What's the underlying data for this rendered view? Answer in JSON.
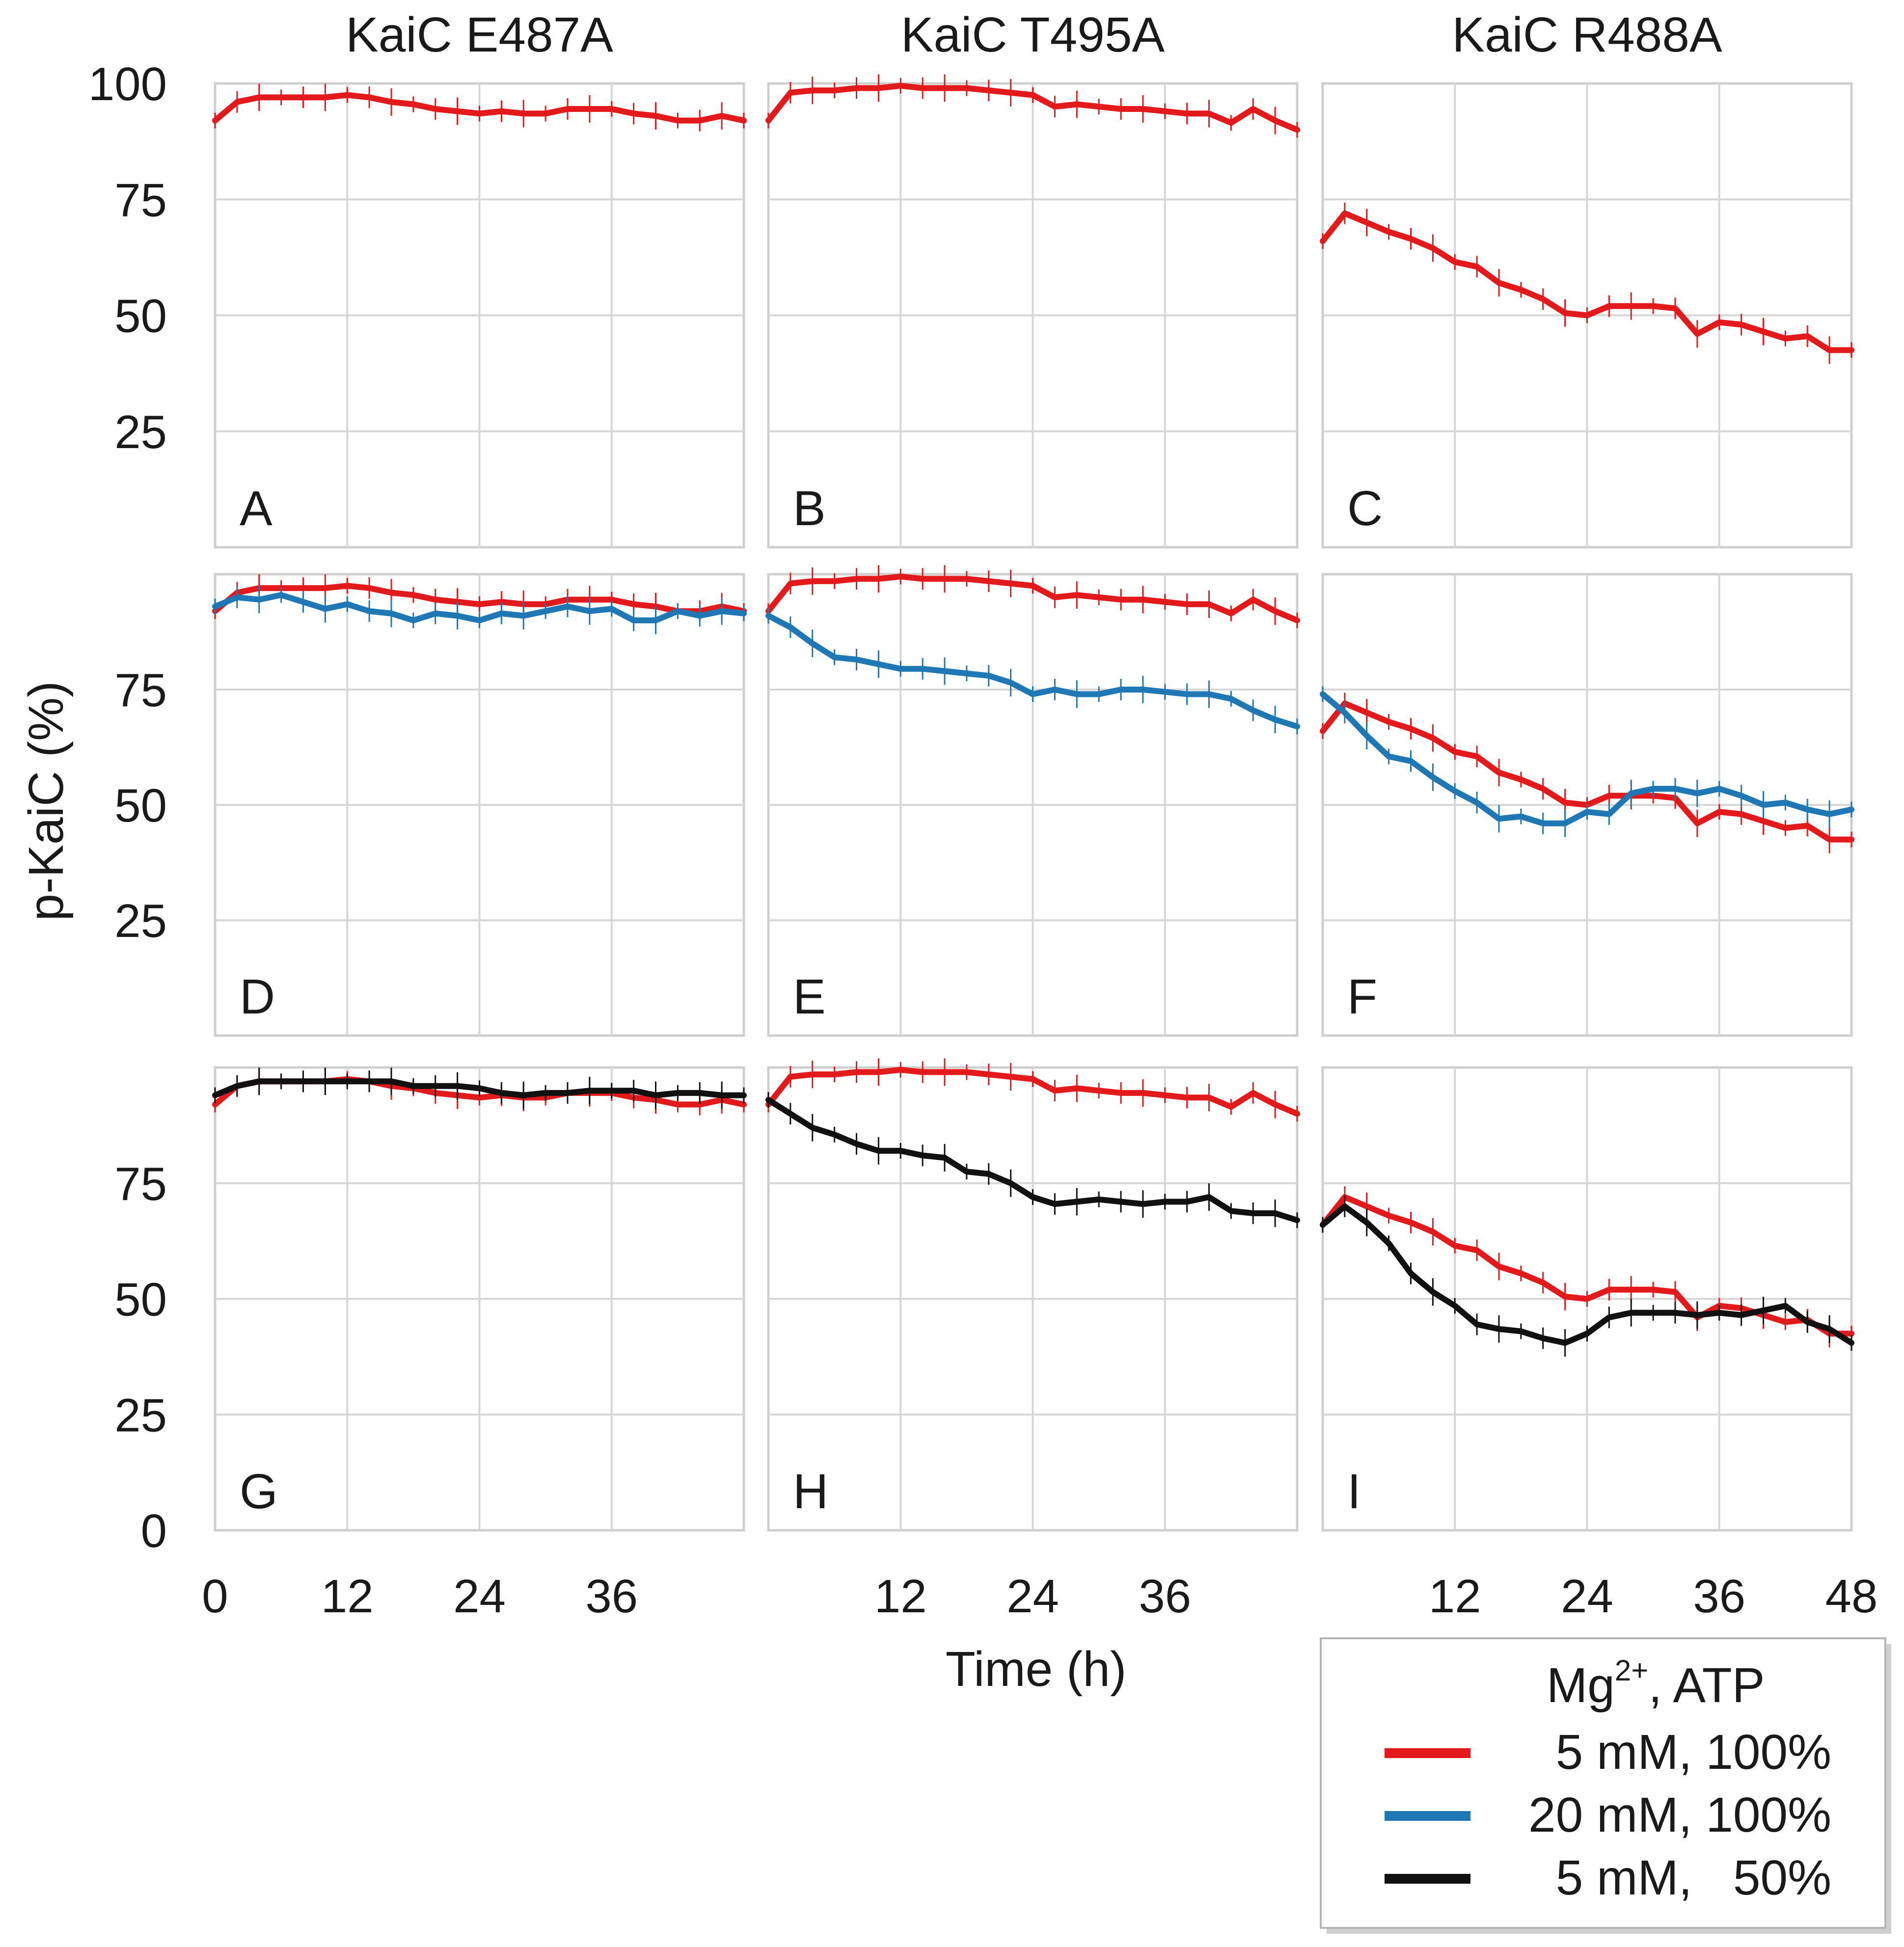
{
  "chart_data": {
    "type": "line",
    "layout": "3x3 small multiples",
    "column_titles": [
      "KaiC E487A",
      "KaiC T495A",
      "KaiC R488A"
    ],
    "ylabel": "p-KaiC (%)",
    "xlabel": "Time (h)",
    "xlim": [
      0,
      48
    ],
    "ylim": [
      0,
      100
    ],
    "x_grid": [
      0,
      12,
      24,
      36,
      48
    ],
    "y_grid": [
      0,
      25,
      50,
      75,
      100
    ],
    "y_tick_rows": [
      [
        "100",
        "75",
        "50",
        "25"
      ],
      [
        "75",
        "50",
        "25"
      ],
      [
        "75",
        "50",
        "25",
        "0"
      ]
    ],
    "x_tick_cols": [
      [
        "0",
        "12",
        "24",
        "36"
      ],
      [
        "12",
        "24",
        "36"
      ],
      [
        "12",
        "24",
        "36",
        "48"
      ]
    ],
    "colors": {
      "5 mM, 100%": "#e31a1c",
      "20 mM, 100%": "#1f78b4",
      "5 mM, 50%": "#111111",
      "frame": "#cfcfcf",
      "grid": "#d6d6d6"
    },
    "legend": {
      "title_mg": "Mg",
      "title_sup": "2+",
      "title_rest": ",  ATP",
      "entries": [
        "5 mM, 100%",
        "20 mM, 100%",
        "5 mM,   50%"
      ],
      "placement": "bottom-right"
    },
    "series_profiles": {
      "E487A_red": {
        "x": [
          0,
          2,
          4,
          6,
          8,
          10,
          12,
          14,
          16,
          18,
          20,
          22,
          24,
          26,
          28,
          30,
          32,
          34,
          36,
          38,
          40,
          42,
          44,
          46,
          48
        ],
        "y": [
          92,
          96,
          97,
          97,
          97,
          97,
          97.5,
          97,
          96,
          95.5,
          94.5,
          94,
          93.5,
          94,
          93.5,
          93.5,
          94.5,
          94.5,
          94.5,
          93.5,
          93,
          92,
          92,
          93,
          92
        ]
      },
      "E487A_blue": {
        "x": [
          0,
          2,
          4,
          6,
          8,
          10,
          12,
          14,
          16,
          18,
          20,
          22,
          24,
          26,
          28,
          30,
          32,
          34,
          36,
          38,
          40,
          42,
          44,
          46,
          48
        ],
        "y": [
          93,
          95,
          94.5,
          95.5,
          94,
          92.5,
          93.5,
          92,
          91.5,
          90,
          91.5,
          91,
          90,
          91.5,
          91,
          92,
          93,
          92,
          92.5,
          90,
          90,
          92,
          91,
          92,
          91.5
        ]
      },
      "E487A_black": {
        "x": [
          0,
          2,
          4,
          6,
          8,
          10,
          12,
          14,
          16,
          18,
          20,
          22,
          24,
          26,
          28,
          30,
          32,
          34,
          36,
          38,
          40,
          42,
          44,
          46,
          48
        ],
        "y": [
          94,
          96,
          97,
          97,
          97,
          97,
          97,
          97,
          97,
          96,
          96,
          96,
          95.5,
          94.5,
          94,
          94.5,
          94.5,
          95,
          95,
          95,
          94,
          94.5,
          94.5,
          94,
          94
        ]
      },
      "T495A_red": {
        "x": [
          0,
          2,
          4,
          6,
          8,
          10,
          12,
          14,
          16,
          18,
          20,
          22,
          24,
          26,
          28,
          30,
          32,
          34,
          36,
          38,
          40,
          42,
          44,
          46,
          48
        ],
        "y": [
          92,
          98,
          98.5,
          98.5,
          99,
          99,
          99.5,
          99,
          99,
          99,
          98.5,
          98,
          97.5,
          95,
          95.5,
          95,
          94.5,
          94.5,
          94,
          93.5,
          93.5,
          91.5,
          94.5,
          92,
          90
        ]
      },
      "T495A_blue": {
        "x": [
          0,
          2,
          4,
          6,
          8,
          10,
          12,
          14,
          16,
          18,
          20,
          22,
          24,
          26,
          28,
          30,
          32,
          34,
          36,
          38,
          40,
          42,
          44,
          46,
          48
        ],
        "y": [
          91,
          88.5,
          85,
          82,
          81.5,
          80.5,
          79.5,
          79.5,
          79,
          78.5,
          78,
          76.5,
          74,
          75,
          74,
          74,
          75,
          75,
          74.5,
          74,
          74,
          73,
          70.5,
          68.5,
          67
        ]
      },
      "T495A_black": {
        "x": [
          0,
          2,
          4,
          6,
          8,
          10,
          12,
          14,
          16,
          18,
          20,
          22,
          24,
          26,
          28,
          30,
          32,
          34,
          36,
          38,
          40,
          42,
          44,
          46,
          48
        ],
        "y": [
          93,
          90,
          87,
          85.5,
          83.5,
          82,
          82,
          81,
          80.5,
          77.5,
          77,
          75,
          72,
          70.5,
          71,
          71.5,
          71,
          70.5,
          71,
          71,
          72,
          69,
          68.5,
          68.5,
          67
        ]
      },
      "R488A_red": {
        "x": [
          0,
          2,
          4,
          6,
          8,
          10,
          12,
          14,
          16,
          18,
          20,
          22,
          24,
          26,
          28,
          30,
          32,
          34,
          36,
          38,
          40,
          42,
          44,
          46,
          48
        ],
        "y": [
          66,
          72,
          70,
          68,
          66.5,
          64.5,
          61.5,
          60.5,
          57,
          55.5,
          53.5,
          50.5,
          50,
          52,
          52,
          52,
          51.5,
          46,
          48.5,
          48,
          46.5,
          45,
          45.5,
          42.5,
          42.5
        ]
      },
      "R488A_blue": {
        "x": [
          0,
          2,
          4,
          6,
          8,
          10,
          12,
          14,
          16,
          18,
          20,
          22,
          24,
          26,
          28,
          30,
          32,
          34,
          36,
          38,
          40,
          42,
          44,
          46,
          48
        ],
        "y": [
          74,
          70,
          65,
          60.5,
          59.5,
          56,
          53,
          50.5,
          47,
          47.5,
          46,
          46,
          48.5,
          48,
          52.5,
          53.5,
          53.5,
          52.5,
          53.5,
          52,
          50,
          50.5,
          49,
          48,
          49
        ]
      },
      "R488A_black": {
        "x": [
          0,
          2,
          4,
          6,
          8,
          10,
          12,
          14,
          16,
          18,
          20,
          22,
          24,
          26,
          28,
          30,
          32,
          34,
          36,
          38,
          40,
          42,
          44,
          46,
          48
        ],
        "y": [
          66,
          70,
          66.5,
          62,
          55.5,
          51.5,
          48.5,
          44.5,
          43.5,
          43,
          41.5,
          40.5,
          42.5,
          46,
          47,
          47,
          47,
          46.5,
          47,
          46.5,
          47.5,
          48.5,
          45,
          43.5,
          40.5
        ]
      }
    },
    "panels": [
      {
        "label": "A",
        "row": 0,
        "col": 0,
        "series": [
          "E487A_red"
        ]
      },
      {
        "label": "B",
        "row": 0,
        "col": 1,
        "series": [
          "T495A_red"
        ]
      },
      {
        "label": "C",
        "row": 0,
        "col": 2,
        "series": [
          "R488A_red"
        ]
      },
      {
        "label": "D",
        "row": 1,
        "col": 0,
        "series": [
          "E487A_red",
          "E487A_blue"
        ]
      },
      {
        "label": "E",
        "row": 1,
        "col": 1,
        "series": [
          "T495A_red",
          "T495A_blue"
        ]
      },
      {
        "label": "F",
        "row": 1,
        "col": 2,
        "series": [
          "R488A_red",
          "R488A_blue"
        ]
      },
      {
        "label": "G",
        "row": 2,
        "col": 0,
        "series": [
          "E487A_red",
          "E487A_black"
        ]
      },
      {
        "label": "H",
        "row": 2,
        "col": 1,
        "series": [
          "T495A_red",
          "T495A_black"
        ]
      },
      {
        "label": "I",
        "row": 2,
        "col": 2,
        "series": [
          "R488A_red",
          "R488A_black"
        ]
      }
    ]
  }
}
